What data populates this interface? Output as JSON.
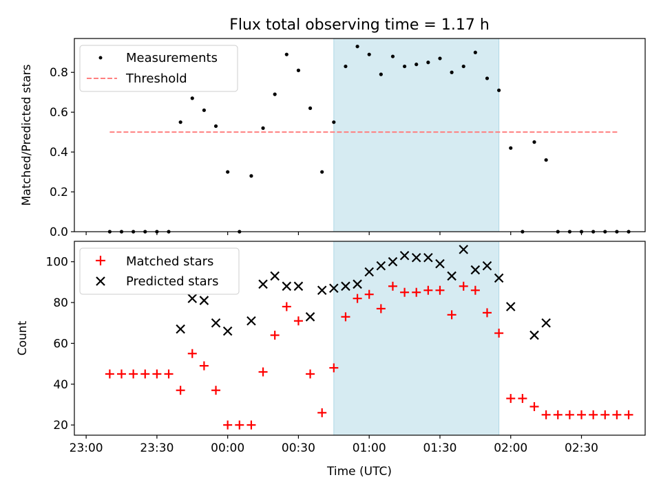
{
  "chart_data": {
    "type": "scatter",
    "title": "Flux total observing time = 1.17 h",
    "xlabel": "Time (UTC)",
    "x_tick_labels": [
      "23:00",
      "23:30",
      "00:00",
      "00:30",
      "01:00",
      "01:30",
      "02:00",
      "02:30"
    ],
    "x_tick_minutes": [
      0,
      30,
      60,
      90,
      120,
      150,
      180,
      210
    ],
    "xlim_minutes": [
      -5,
      237
    ],
    "shaded_interval_minutes": [
      105,
      175
    ],
    "shade_color": "#add8e6",
    "times_minutes": [
      10,
      15,
      20,
      25,
      30,
      35,
      40,
      45,
      50,
      55,
      60,
      65,
      70,
      75,
      80,
      85,
      90,
      95,
      100,
      105,
      110,
      115,
      120,
      125,
      130,
      135,
      140,
      145,
      150,
      155,
      160,
      165,
      170,
      175,
      180,
      185,
      190,
      195,
      200,
      205,
      210,
      215,
      220,
      225,
      230
    ],
    "panels": [
      {
        "ylabel": "Matched/Predicted stars",
        "ylim": [
          0,
          0.97
        ],
        "yticks": [
          0.0,
          0.2,
          0.4,
          0.6,
          0.8
        ],
        "y_tick_labels": [
          "0.0",
          "0.2",
          "0.4",
          "0.6",
          "0.8"
        ],
        "legend_position": "upper-left",
        "series": [
          {
            "name": "Measurements",
            "marker": "dot",
            "color": "#000000",
            "values": [
              0,
              0,
              0,
              0,
              0,
              0,
              0.55,
              0.67,
              0.61,
              0.53,
              0.3,
              0,
              0.28,
              0.52,
              0.69,
              0.89,
              0.81,
              0.62,
              0.3,
              0.55,
              0.83,
              0.93,
              0.89,
              0.79,
              0.88,
              0.83,
              0.84,
              0.85,
              0.87,
              0.8,
              0.83,
              0.9,
              0.77,
              0.71,
              0.42,
              0,
              0.45,
              0.36,
              0,
              0,
              0,
              0,
              0,
              0,
              0
            ]
          },
          {
            "name": "Threshold",
            "marker": "dashed-line",
            "color": "#ff7f7f",
            "value": 0.5,
            "x_range_minutes": [
              10,
              226
            ]
          }
        ]
      },
      {
        "ylabel": "Count",
        "ylim": [
          15,
          110
        ],
        "yticks": [
          20,
          40,
          60,
          80,
          100
        ],
        "y_tick_labels": [
          "20",
          "40",
          "60",
          "80",
          "100"
        ],
        "legend_position": "upper-left",
        "series": [
          {
            "name": "Matched stars",
            "marker": "plus",
            "color": "#ff0000",
            "values": [
              45,
              45,
              45,
              45,
              45,
              45,
              37,
              55,
              49,
              37,
              20,
              20,
              20,
              46,
              64,
              78,
              71,
              45,
              26,
              48,
              73,
              82,
              84,
              77,
              88,
              85,
              85,
              86,
              86,
              74,
              88,
              86,
              75,
              65,
              33,
              33,
              29,
              25,
              25,
              25,
              25,
              25,
              25,
              25,
              25
            ]
          },
          {
            "name": "Predicted stars",
            "marker": "x",
            "color": "#000000",
            "values": [
              null,
              null,
              null,
              null,
              null,
              null,
              67,
              82,
              81,
              70,
              66,
              null,
              71,
              89,
              93,
              88,
              88,
              73,
              86,
              87,
              88,
              89,
              95,
              98,
              100,
              103,
              102,
              102,
              99,
              93,
              106,
              96,
              98,
              92,
              78,
              null,
              64,
              70,
              null,
              null,
              null,
              null,
              null,
              null,
              null
            ]
          }
        ]
      }
    ]
  }
}
